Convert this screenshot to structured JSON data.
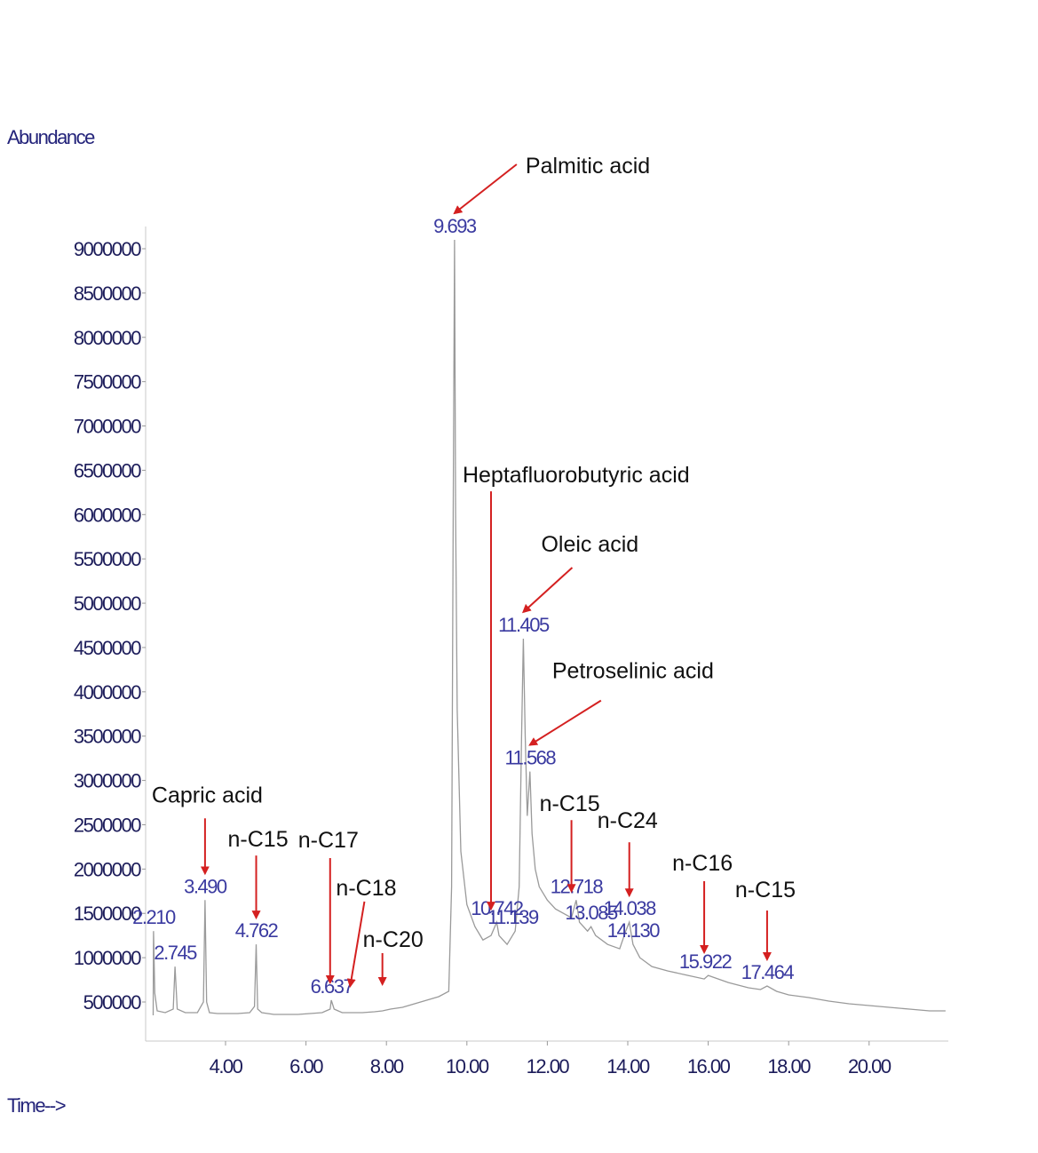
{
  "chart_data": {
    "type": "line",
    "ylabel": "Abundance",
    "xlabel": "Time-->",
    "xlim": [
      2.2,
      22.0
    ],
    "ylim": [
      0,
      9000000
    ],
    "y_ticks": [
      "500000",
      "1000000",
      "1500000",
      "2000000",
      "2500000",
      "3000000",
      "3500000",
      "4000000",
      "4500000",
      "5000000",
      "5500000",
      "6000000",
      "6500000",
      "7000000",
      "7500000",
      "8000000",
      "8500000",
      "9000000"
    ],
    "x_ticks": [
      "4.00",
      "6.00",
      "8.00",
      "10.00",
      "12.00",
      "14.00",
      "16.00",
      "18.00",
      "20.00"
    ],
    "grid": false,
    "series": [
      {
        "x": [
          2.2,
          2.21,
          2.24,
          2.3,
          2.5,
          2.7,
          2.745,
          2.8,
          3.0,
          3.3,
          3.45,
          3.49,
          3.53,
          3.6,
          3.8,
          4.0,
          4.3,
          4.6,
          4.72,
          4.762,
          4.8,
          4.9,
          5.2,
          5.5,
          5.8,
          6.1,
          6.4,
          6.6,
          6.63,
          6.7,
          6.9,
          7.1,
          7.4,
          7.7,
          7.9,
          8.1,
          8.4,
          8.7,
          9.0,
          9.3,
          9.55,
          9.62,
          9.66,
          9.693,
          9.72,
          9.76,
          9.85,
          10.0,
          10.2,
          10.4,
          10.6,
          10.742,
          10.8,
          11.0,
          11.2,
          11.3,
          11.36,
          11.405,
          11.45,
          11.5,
          11.568,
          11.62,
          11.7,
          11.8,
          12.0,
          12.2,
          12.4,
          12.6,
          12.718,
          12.8,
          13.0,
          13.085,
          13.2,
          13.5,
          13.8,
          13.95,
          14.038,
          14.13,
          14.3,
          14.6,
          15.0,
          15.5,
          15.9,
          16.0,
          16.5,
          17.0,
          17.3,
          17.464,
          17.7,
          18.0,
          18.5,
          19.0,
          19.5,
          20.0,
          20.5,
          21.0,
          21.5,
          21.9
        ],
        "y": [
          350000,
          1300000,
          600000,
          400000,
          380000,
          420000,
          900000,
          420000,
          380000,
          380000,
          500000,
          1650000,
          500000,
          380000,
          370000,
          370000,
          370000,
          380000,
          450000,
          1150000,
          420000,
          380000,
          360000,
          360000,
          360000,
          370000,
          380000,
          420000,
          520000,
          420000,
          380000,
          380000,
          380000,
          390000,
          400000,
          420000,
          440000,
          480000,
          520000,
          560000,
          620000,
          1800000,
          6000000,
          9100000,
          6000000,
          3800000,
          2200000,
          1600000,
          1350000,
          1200000,
          1250000,
          1400000,
          1250000,
          1150000,
          1300000,
          1800000,
          3500000,
          4600000,
          3500000,
          2600000,
          3100000,
          2400000,
          2000000,
          1800000,
          1650000,
          1550000,
          1500000,
          1450000,
          1650000,
          1400000,
          1300000,
          1350000,
          1250000,
          1150000,
          1100000,
          1300000,
          1400000,
          1150000,
          1000000,
          900000,
          850000,
          800000,
          760000,
          800000,
          720000,
          660000,
          640000,
          680000,
          620000,
          580000,
          550000,
          510000,
          480000,
          460000,
          440000,
          420000,
          400000,
          400000
        ]
      }
    ],
    "peak_labels": [
      {
        "label": "9.693",
        "x": 9.693,
        "y": 9100000
      },
      {
        "label": "11.405",
        "x": 11.405,
        "y": 4600000
      },
      {
        "label": "11.568",
        "x": 11.568,
        "y": 3100000
      },
      {
        "label": "3.490",
        "x": 3.49,
        "y": 1650000
      },
      {
        "label": "4.762",
        "x": 4.762,
        "y": 1150000
      },
      {
        "label": "10.742",
        "x": 10.742,
        "y": 1400000
      },
      {
        "label": "12.718",
        "x": 12.718,
        "y": 1650000
      },
      {
        "label": "13.085",
        "x": 13.085,
        "y": 1350000
      },
      {
        "label": "14.038",
        "x": 14.038,
        "y": 1400000
      },
      {
        "label": "14.130",
        "x": 14.13,
        "y": 1150000
      },
      {
        "label": "2.210",
        "x": 2.21,
        "y": 1300000
      },
      {
        "label": "2.745",
        "x": 2.745,
        "y": 900000
      },
      {
        "label": "6.637",
        "x": 6.637,
        "y": 520000
      },
      {
        "label": "11.139",
        "x": 11.139,
        "y": 1300000
      },
      {
        "label": "15.922",
        "x": 15.922,
        "y": 800000
      },
      {
        "label": "17.464",
        "x": 17.464,
        "y": 680000
      }
    ],
    "annotations": [
      {
        "text": "Palmitic acid",
        "x": 9.693,
        "y": 9100000
      },
      {
        "text": "Heptafluorobutyric acid",
        "x": 10.6,
        "y": 1250000
      },
      {
        "text": "Oleic acid",
        "x": 11.405,
        "y": 4600000
      },
      {
        "text": "Petroselinic acid",
        "x": 11.568,
        "y": 3100000
      },
      {
        "text": "Capric acid",
        "x": 3.49,
        "y": 1650000
      },
      {
        "text": "n-C15",
        "x": 4.762,
        "y": 1150000
      },
      {
        "text": "n-C17",
        "x": 6.6,
        "y": 420000
      },
      {
        "text": "n-C18",
        "x": 7.1,
        "y": 380000
      },
      {
        "text": "n-C20",
        "x": 7.9,
        "y": 400000
      },
      {
        "text": "n-C15",
        "x": 12.6,
        "y": 1450000
      },
      {
        "text": "n-C24",
        "x": 14.038,
        "y": 1400000
      },
      {
        "text": "n-C16",
        "x": 15.9,
        "y": 760000
      },
      {
        "text": "n-C15",
        "x": 17.464,
        "y": 680000
      }
    ]
  }
}
